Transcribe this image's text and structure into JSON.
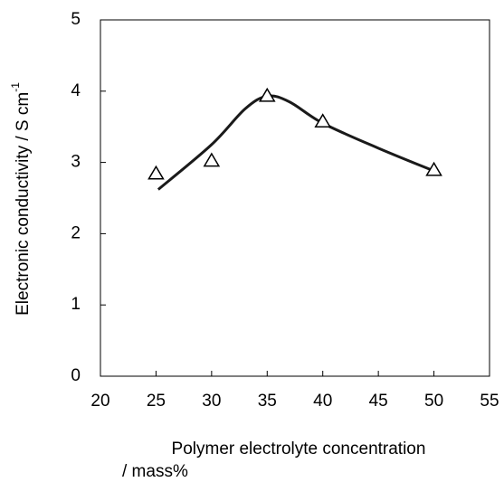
{
  "chart_data": {
    "type": "scatter",
    "xlabel": [
      "Polymer electrolyte concentration",
      "/ mass%"
    ],
    "ylabel": "Electronic conductivity / S  cm",
    "ylabel_sup": "-1",
    "xlim": [
      20,
      55
    ],
    "xticks": [
      20,
      25,
      30,
      35,
      40,
      45,
      50,
      55
    ],
    "ylim": [
      0,
      5
    ],
    "yticks": [
      0,
      1,
      2,
      3,
      4,
      5
    ],
    "grid": false,
    "series": [
      {
        "kind": "marker",
        "marker": "triangle",
        "color": "#000000",
        "x": [
          25,
          30,
          35,
          40,
          50
        ],
        "values": [
          2.84,
          3.02,
          3.93,
          3.57,
          2.89
        ]
      },
      {
        "kind": "curve",
        "color": "#1a1a1a",
        "x": [
          25.2,
          30,
          33,
          35,
          37,
          40,
          45,
          50
        ],
        "values": [
          2.62,
          3.25,
          3.75,
          3.93,
          3.85,
          3.55,
          3.2,
          2.88
        ]
      }
    ]
  }
}
